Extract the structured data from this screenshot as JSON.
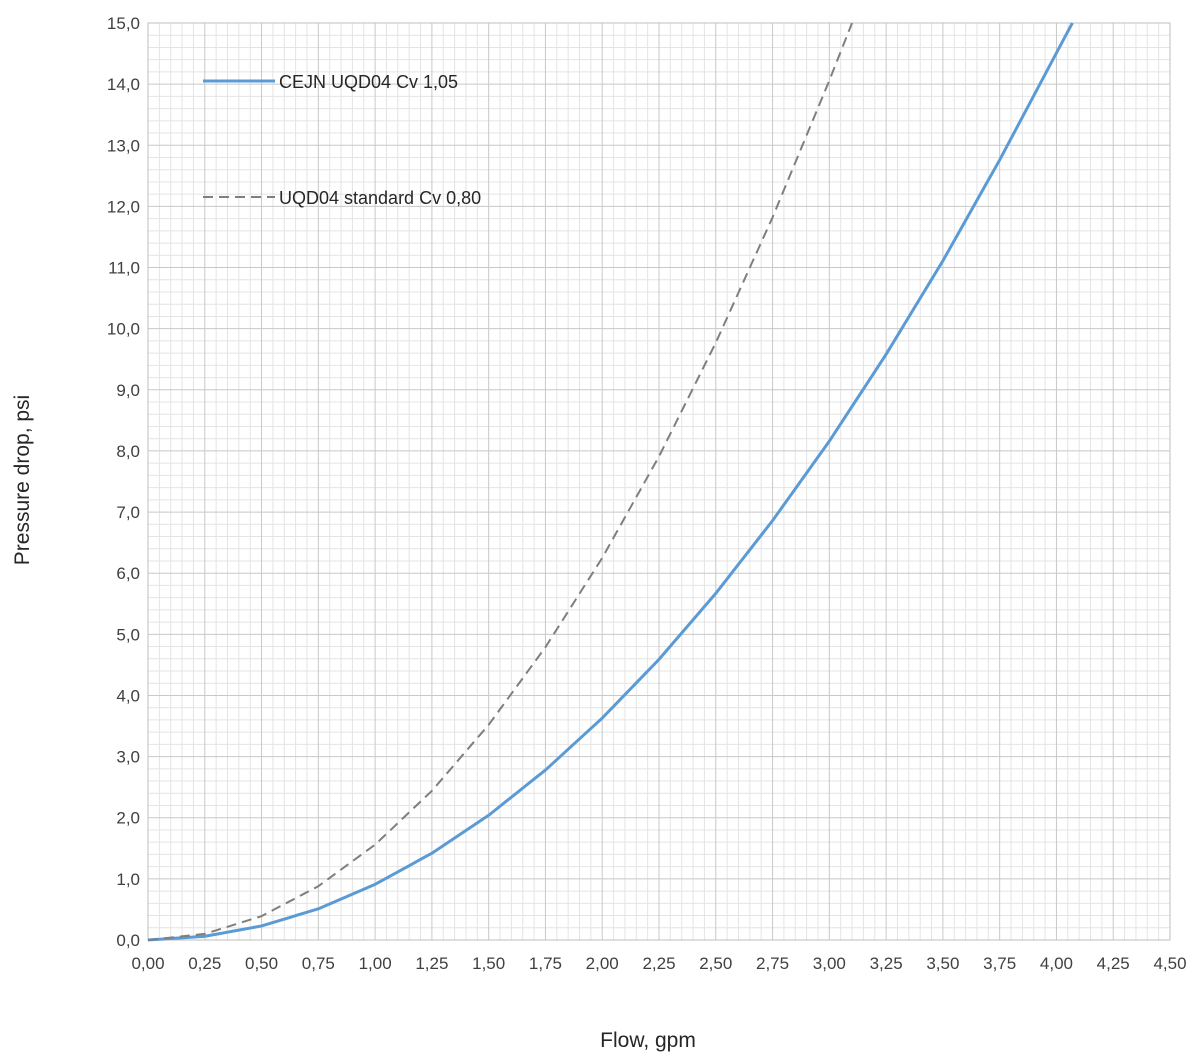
{
  "chart_data": {
    "type": "line",
    "xlabel": "Flow, gpm",
    "ylabel": "Pressure drop, psi",
    "xlim": [
      0,
      4.5
    ],
    "ylim": [
      0,
      15
    ],
    "x_ticks": [
      "0,00",
      "0,25",
      "0,50",
      "0,75",
      "1,00",
      "1,25",
      "1,50",
      "1,75",
      "2,00",
      "2,25",
      "2,50",
      "2,75",
      "3,00",
      "3,25",
      "3,50",
      "3,75",
      "4,00",
      "4,25",
      "4,50"
    ],
    "y_ticks": [
      "0,0",
      "1,0",
      "2,0",
      "3,0",
      "4,0",
      "5,0",
      "6,0",
      "7,0",
      "8,0",
      "9,0",
      "10,0",
      "11,0",
      "12,0",
      "13,0",
      "14,0",
      "15,0"
    ],
    "grid": "major and minor",
    "legend_position": "top-left",
    "series": [
      {
        "name": "CEJN UQD04 Cv 1,05",
        "color": "#5b9bd5",
        "style": "solid",
        "x": [
          0,
          0.25,
          0.5,
          0.75,
          1.0,
          1.25,
          1.5,
          1.75,
          2.0,
          2.25,
          2.5,
          2.75,
          3.0,
          3.25,
          3.5,
          3.75,
          4.0,
          4.07
        ],
        "y": [
          0,
          0.06,
          0.23,
          0.51,
          0.91,
          1.42,
          2.04,
          2.78,
          3.63,
          4.59,
          5.67,
          6.86,
          8.16,
          9.58,
          11.11,
          12.76,
          14.51,
          15.0
        ]
      },
      {
        "name": "UQD04 standard Cv 0,80",
        "color": "#7f7f7f",
        "style": "dashed",
        "x": [
          0,
          0.25,
          0.5,
          0.75,
          1.0,
          1.25,
          1.5,
          1.75,
          2.0,
          2.25,
          2.5,
          2.75,
          3.0,
          3.1
        ],
        "y": [
          0,
          0.1,
          0.39,
          0.88,
          1.56,
          2.44,
          3.52,
          4.79,
          6.25,
          7.91,
          9.77,
          11.82,
          14.06,
          15.0
        ]
      }
    ]
  }
}
